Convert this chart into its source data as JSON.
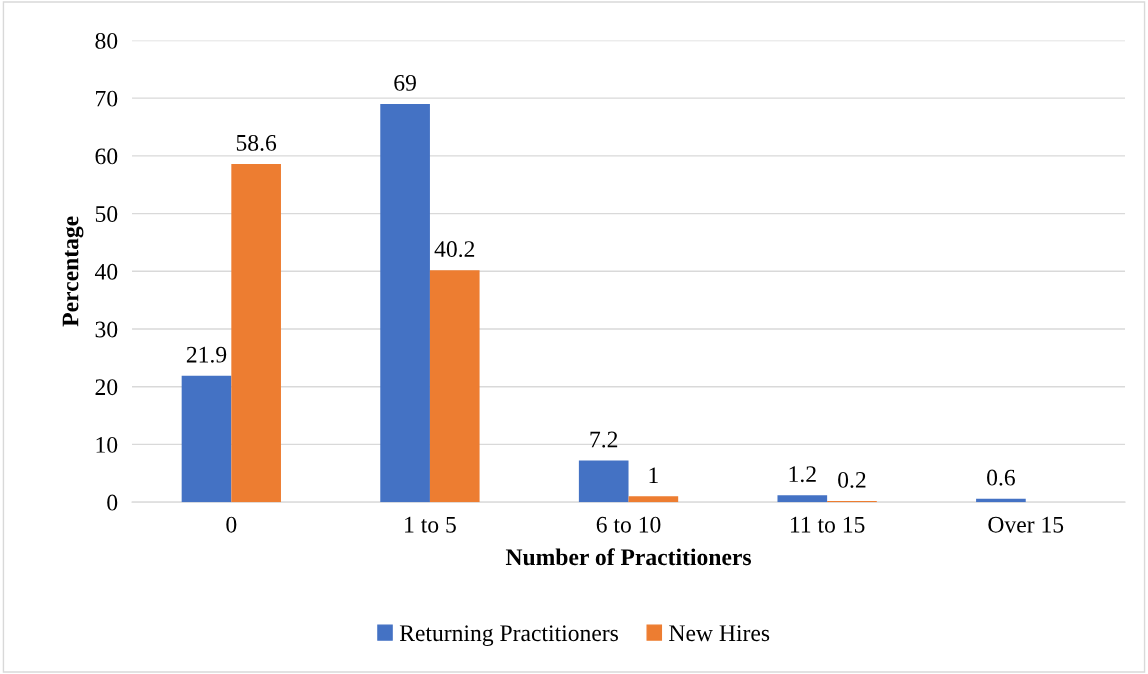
{
  "chart_data": {
    "type": "bar",
    "xlabel": "Number of Practitioners",
    "ylabel": "Percentage",
    "categories": [
      "0",
      "1 to 5",
      "6 to 10",
      "11 to 15",
      "Over 15"
    ],
    "series": [
      {
        "name": "Returning Practitioners",
        "color": "#4472c4",
        "values": [
          21.9,
          69,
          7.2,
          1.2,
          0.6
        ]
      },
      {
        "name": "New Hires",
        "color": "#ed7d31",
        "values": [
          58.6,
          40.2,
          1,
          0.2,
          null
        ]
      }
    ],
    "ylim": [
      0,
      80
    ],
    "yticks": [
      0,
      10,
      20,
      30,
      40,
      50,
      60,
      70,
      80
    ],
    "grid": "y",
    "legend": "bottom",
    "data_labels": true
  }
}
